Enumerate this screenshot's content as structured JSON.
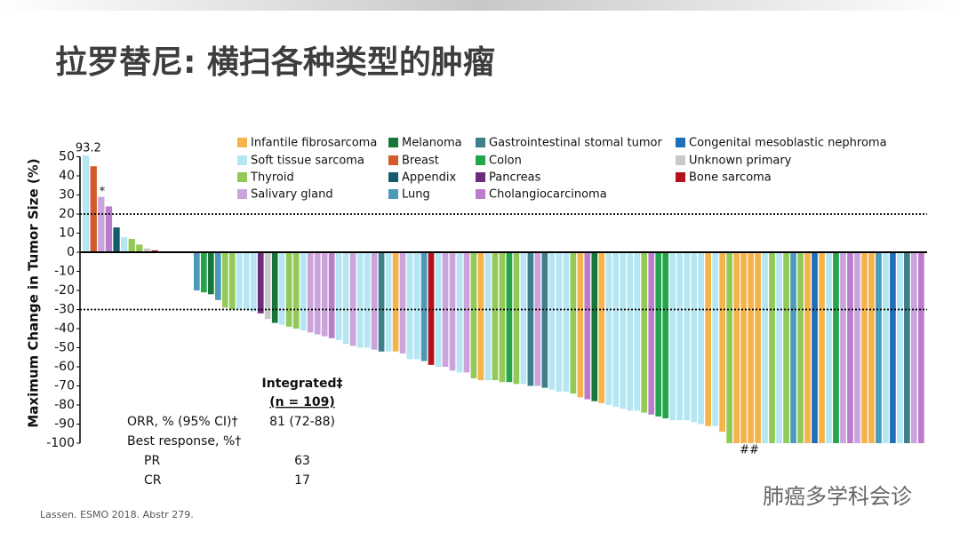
{
  "title": "拉罗替尼: 横扫各种类型的肿瘤",
  "footnote": "Lassen. ESMO 2018. Abstr 279.",
  "watermark": "肺癌多学科会诊",
  "table": {
    "header": [
      "Integrated‡",
      "(n = 109)"
    ],
    "rows": [
      [
        "ORR, % (95% CI)†",
        "81 (72-88)"
      ],
      [
        "Best response, %†"
      ],
      [
        "PR",
        "63"
      ],
      [
        "CR",
        "17"
      ]
    ]
  },
  "chart_data": {
    "type": "bar",
    "y_label": "Maximum Change in Tumor Size (%)",
    "ylim": [
      -100,
      50
    ],
    "yticks": [
      50,
      40,
      30,
      20,
      10,
      0,
      -10,
      -20,
      -30,
      -40,
      -50,
      -60,
      -70,
      -80,
      -90,
      -100
    ],
    "reference_lines": [
      20,
      -30
    ],
    "legend": [
      {
        "name": "Infantile fibrosarcoma",
        "color": "#f5b34c"
      },
      {
        "name": "Melanoma",
        "color": "#17773a"
      },
      {
        "name": "Gastrointestinal stomal tumor",
        "color": "#3f7f8c"
      },
      {
        "name": "Congenital mesoblastic nephroma",
        "color": "#1f6fb8"
      },
      {
        "name": "Soft tissue sarcoma",
        "color": "#b5e6f3"
      },
      {
        "name": "Breast",
        "color": "#d4592b"
      },
      {
        "name": "Colon",
        "color": "#23a64b"
      },
      {
        "name": "Unknown primary",
        "color": "#c9c9c9"
      },
      {
        "name": "Thyroid",
        "color": "#93c957"
      },
      {
        "name": "Appendix",
        "color": "#155b6b"
      },
      {
        "name": "Pancreas",
        "color": "#6b2d7b"
      },
      {
        "name": "Bone sarcoma",
        "color": "#b3121c"
      },
      {
        "name": "Salivary gland",
        "color": "#cba4dc"
      },
      {
        "name": "Lung",
        "color": "#4b9bb8"
      },
      {
        "name": "Cholangiocarcinoma",
        "color": "#b97dcc"
      }
    ],
    "values": [
      93.2,
      45,
      29,
      24,
      13,
      8,
      7,
      4,
      2,
      1,
      -20,
      -21,
      -22,
      -25,
      -29,
      -30,
      -30,
      -30,
      -31,
      -32,
      -35,
      -37,
      -38,
      -39,
      -40,
      -41,
      -42,
      -43,
      -44,
      -45,
      -46,
      -48,
      -49,
      -50,
      -50,
      -51,
      -52,
      -52,
      -52,
      -53,
      -56,
      -56,
      -57,
      -59,
      -60,
      -60,
      -62,
      -63,
      -63,
      -66,
      -67,
      -67,
      -67,
      -68,
      -68,
      -69,
      -69,
      -70,
      -70,
      -71,
      -72,
      -73,
      -73,
      -74,
      -76,
      -77,
      -78,
      -79,
      -80,
      -81,
      -82,
      -83,
      -83,
      -84,
      -85,
      -86,
      -87,
      -88,
      -88,
      -88,
      -89,
      -90,
      -91,
      -91,
      -94,
      -100,
      -100,
      -100,
      -100,
      -100,
      -100,
      -100,
      -100,
      -100,
      -100,
      -100,
      -100,
      -100,
      -100,
      -100,
      -100,
      -100,
      -100,
      -100,
      -100,
      -100,
      -100,
      -100,
      -100,
      -100,
      -100,
      -100,
      -100
    ],
    "value_labels": [
      "93.2",
      null,
      null,
      null,
      null,
      null,
      null,
      null,
      null,
      null,
      null,
      null,
      null,
      null,
      null,
      null,
      null,
      null,
      null,
      null,
      null,
      null,
      null,
      null,
      null,
      null,
      null,
      null,
      null,
      null,
      null,
      null,
      null,
      null,
      null,
      null,
      null,
      null,
      null,
      null,
      null,
      null,
      null,
      null,
      null,
      null,
      null,
      null,
      null,
      null,
      null,
      null,
      null,
      null,
      null,
      null,
      null,
      null,
      null,
      null,
      null,
      null,
      null,
      null,
      null,
      null,
      null,
      null,
      null,
      null,
      null,
      null,
      null,
      null,
      null,
      null,
      null,
      null,
      null,
      null,
      null,
      null,
      null,
      null,
      null,
      null,
      null,
      null,
      null,
      null,
      null,
      null,
      null,
      null,
      null,
      null,
      null,
      null,
      null,
      null,
      null,
      null,
      null,
      null,
      null,
      null,
      null,
      null,
      null,
      null,
      null,
      null,
      null
    ],
    "colors": [
      "#b5e6f3",
      "#d4592b",
      "#cba4dc",
      "#b97dcc",
      "#155b6b",
      "#b5e6f3",
      "#93c957",
      "#93c957",
      "#c9c9c9",
      "#b3121c",
      "#4b9bb8",
      "#23a64b",
      "#17773a",
      "#4b9bb8",
      "#93c957",
      "#93c957",
      "#b5e6f3",
      "#b5e6f3",
      "#b5e6f3",
      "#6b2d7b",
      "#c9c9c9",
      "#17773a",
      "#b5e6f3",
      "#93c957",
      "#93c957",
      "#b5e6f3",
      "#cba4dc",
      "#cba4dc",
      "#cba4dc",
      "#b97dcc",
      "#b5e6f3",
      "#b5e6f3",
      "#cba4dc",
      "#b5e6f3",
      "#b5e6f3",
      "#cba4dc",
      "#3f7f8c",
      "#b5e6f3",
      "#f5b34c",
      "#cba4dc",
      "#b5e6f3",
      "#b5e6f3",
      "#4b9bb8",
      "#b3121c",
      "#b5e6f3",
      "#cba4dc",
      "#cba4dc",
      "#b5e6f3",
      "#cba4dc",
      "#93c957",
      "#f5b34c",
      "#b5e6f3",
      "#93c957",
      "#93c957",
      "#23a64b",
      "#93c957",
      "#b5e6f3",
      "#3f7f8c",
      "#cba4dc",
      "#3f7f8c",
      "#b5e6f3",
      "#b5e6f3",
      "#b5e6f3",
      "#93c957",
      "#f5b34c",
      "#b97dcc",
      "#17773a",
      "#f5b34c",
      "#b5e6f3",
      "#b5e6f3",
      "#b5e6f3",
      "#b5e6f3",
      "#b5e6f3",
      "#93c957",
      "#b97dcc",
      "#23a64b",
      "#23a64b",
      "#b5e6f3",
      "#b5e6f3",
      "#b5e6f3",
      "#b5e6f3",
      "#b5e6f3",
      "#f5b34c",
      "#b5e6f3",
      "#f5b34c",
      "#93c957",
      "#f5b34c",
      "#f5b34c",
      "#f5b34c",
      "#f5b34c",
      "#b5e6f3",
      "#93c957",
      "#b5e6f3",
      "#93c957",
      "#4b9bb8",
      "#93c957",
      "#f5b34c",
      "#1f6fb8",
      "#f5b34c",
      "#b5e6f3",
      "#23a64b",
      "#cba4dc",
      "#b97dcc",
      "#cba4dc",
      "#f5b34c",
      "#f5b34c",
      "#4b9bb8",
      "#b5e6f3",
      "#1f6fb8",
      "#b5e6f3",
      "#3f7f8c",
      "#cba4dc",
      "#b97dcc"
    ],
    "annotations": [
      {
        "text": "*"
      },
      {
        "text": "##"
      }
    ]
  }
}
